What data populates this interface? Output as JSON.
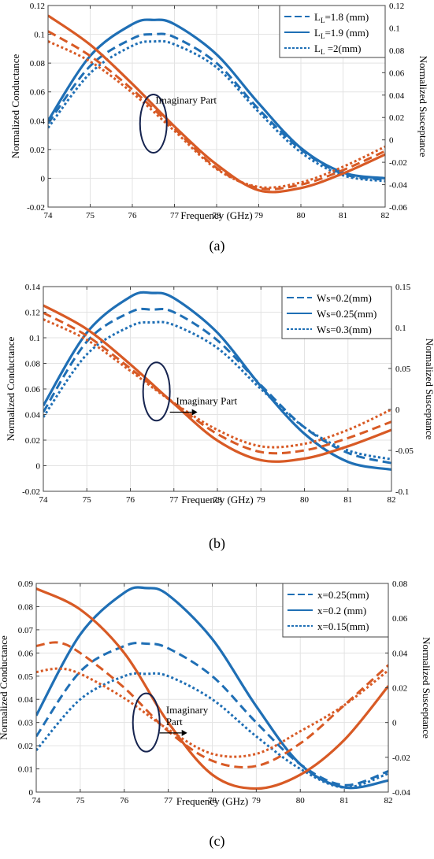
{
  "colors": {
    "blue": "#1f6fb5",
    "orange": "#d85a25",
    "ellipse": "#16244f",
    "grid": "#e3e3e3"
  },
  "chart_data": [
    {
      "type": "line",
      "caption": "(a)",
      "xlabel": "Frequency (GHz)",
      "ylabel": "Normalized Conductance",
      "y2label": "Normalized Susceptance",
      "xlim": [
        74,
        82
      ],
      "ylim": [
        -0.02,
        0.12
      ],
      "y2lim": [
        -0.06,
        0.12
      ],
      "grid": true,
      "legend_position": "top-right",
      "xticks": [
        "74",
        "75",
        "76",
        "77",
        "78",
        "79",
        "80",
        "81",
        "82"
      ],
      "yticks": [
        "-0.02",
        "0",
        "0.02",
        "0.04",
        "0.06",
        "0.08",
        "0.1",
        "0.12"
      ],
      "y2ticks": [
        "-0.06",
        "-0.04",
        "-0.02",
        "0",
        "0.02",
        "0.04",
        "0.06",
        "0.08",
        "0.1",
        "0.12"
      ],
      "legend": [
        {
          "base": "L",
          "sub": "L",
          "text": "=1.8 (mm)",
          "style": "dashed"
        },
        {
          "base": "L",
          "sub": "L",
          "text": "=1.9 (mm)",
          "style": "solid"
        },
        {
          "base": "L",
          "sub": "L",
          "text": " =2(mm)",
          "style": "dotted"
        }
      ],
      "annotation": {
        "lines": [
          "Imaginary Part"
        ],
        "x": 76.5,
        "y": 0.038,
        "text_x": 76.55,
        "text_y": 0.052,
        "arrow": false
      },
      "series": [
        {
          "part": "real",
          "style": "dashed",
          "axis": "left",
          "x": [
            74,
            75,
            76,
            76.5,
            77,
            78,
            79,
            80,
            81,
            82
          ],
          "y": [
            0.038,
            0.078,
            0.097,
            0.1,
            0.098,
            0.08,
            0.048,
            0.02,
            0.003,
            -0.001
          ]
        },
        {
          "part": "real",
          "style": "solid",
          "axis": "left",
          "x": [
            74,
            75,
            76,
            76.5,
            77,
            78,
            79,
            80,
            81,
            82
          ],
          "y": [
            0.04,
            0.085,
            0.107,
            0.11,
            0.107,
            0.086,
            0.052,
            0.021,
            0.004,
            0
          ]
        },
        {
          "part": "real",
          "style": "dotted",
          "axis": "left",
          "x": [
            74,
            75,
            76,
            76.5,
            77,
            78,
            79,
            80,
            81,
            82
          ],
          "y": [
            0.035,
            0.073,
            0.092,
            0.095,
            0.093,
            0.077,
            0.046,
            0.018,
            0.002,
            -0.002
          ]
        },
        {
          "part": "imaginary",
          "style": "dashed",
          "axis": "right",
          "x": [
            74,
            75,
            76,
            77,
            78,
            79,
            80,
            81,
            82
          ],
          "y": [
            0.097,
            0.075,
            0.045,
            0.01,
            -0.025,
            -0.043,
            -0.04,
            -0.027,
            -0.01
          ]
        },
        {
          "part": "imaginary",
          "style": "solid",
          "axis": "right",
          "x": [
            74,
            75,
            76,
            77,
            78,
            79,
            80,
            81,
            82
          ],
          "y": [
            0.111,
            0.085,
            0.05,
            0.012,
            -0.022,
            -0.045,
            -0.043,
            -0.03,
            -0.013
          ]
        },
        {
          "part": "imaginary",
          "style": "dotted",
          "axis": "right",
          "x": [
            74,
            75,
            76,
            77,
            78,
            79,
            80,
            81,
            82
          ],
          "y": [
            0.088,
            0.07,
            0.042,
            0.008,
            -0.026,
            -0.042,
            -0.038,
            -0.024,
            -0.006
          ]
        }
      ]
    },
    {
      "type": "line",
      "caption": "(b)",
      "xlabel": "Frequency (GHz)",
      "ylabel": "Normalized Conductance",
      "y2label": "Normalized Susceptance",
      "xlim": [
        74,
        82
      ],
      "ylim": [
        -0.02,
        0.14
      ],
      "y2lim": [
        -0.1,
        0.15
      ],
      "grid": true,
      "legend_position": "top-right",
      "xticks": [
        "74",
        "75",
        "76",
        "77",
        "78",
        "79",
        "80",
        "81",
        "82"
      ],
      "yticks": [
        "-0.02",
        "0",
        "0.02",
        "0.04",
        "0.06",
        "0.08",
        "0.1",
        "0.12",
        "0.14"
      ],
      "y2ticks": [
        "-0.1",
        "-0.05",
        "0",
        "0.05",
        "0.1",
        "0.15"
      ],
      "legend": [
        {
          "base": "Ws",
          "sub": "",
          "text": "=0.2(mm)",
          "style": "dashed"
        },
        {
          "base": "Ws",
          "sub": "",
          "text": "=0.25(mm)",
          "style": "solid"
        },
        {
          "base": "Ws",
          "sub": "",
          "text": "=0.3(mm)",
          "style": "dotted"
        }
      ],
      "annotation": {
        "lines": [
          "Imaginary Part"
        ],
        "x": 76.6,
        "y": 0.058,
        "text_x": 77.05,
        "text_y": 0.048,
        "arrow": true
      },
      "series": [
        {
          "part": "real",
          "style": "dashed",
          "axis": "left",
          "x": [
            74,
            75,
            76,
            76.5,
            77,
            78,
            79,
            80,
            81,
            82
          ],
          "y": [
            0.042,
            0.097,
            0.12,
            0.122,
            0.12,
            0.098,
            0.063,
            0.03,
            0.01,
            0.002
          ]
        },
        {
          "part": "real",
          "style": "solid",
          "axis": "left",
          "x": [
            74,
            75,
            76,
            76.5,
            77,
            78,
            79,
            80,
            81,
            82
          ],
          "y": [
            0.047,
            0.104,
            0.132,
            0.135,
            0.131,
            0.104,
            0.062,
            0.025,
            0.003,
            -0.003
          ]
        },
        {
          "part": "real",
          "style": "dotted",
          "axis": "left",
          "x": [
            74,
            75,
            76,
            76.5,
            77,
            78,
            79,
            80,
            81,
            82
          ],
          "y": [
            0.038,
            0.087,
            0.109,
            0.112,
            0.11,
            0.092,
            0.06,
            0.03,
            0.012,
            0.005
          ]
        },
        {
          "part": "imaginary",
          "style": "dashed",
          "axis": "right",
          "x": [
            74,
            75,
            76,
            77,
            78,
            79,
            80,
            81,
            82
          ],
          "y": [
            0.118,
            0.09,
            0.05,
            0.008,
            -0.03,
            -0.052,
            -0.05,
            -0.035,
            -0.015
          ]
        },
        {
          "part": "imaginary",
          "style": "solid",
          "axis": "right",
          "x": [
            74,
            75,
            76,
            77,
            78,
            79,
            80,
            81,
            82
          ],
          "y": [
            0.127,
            0.098,
            0.055,
            0.007,
            -0.038,
            -0.062,
            -0.06,
            -0.045,
            -0.025
          ]
        },
        {
          "part": "imaginary",
          "style": "dotted",
          "axis": "right",
          "x": [
            74,
            75,
            76,
            77,
            78,
            79,
            80,
            81,
            82
          ],
          "y": [
            0.11,
            0.085,
            0.047,
            0.008,
            -0.025,
            -0.045,
            -0.042,
            -0.025,
            0
          ]
        }
      ]
    },
    {
      "type": "line",
      "caption": "(c)",
      "xlabel": "Frequency (GHz)",
      "ylabel": "Normalized Conductance",
      "y2label": "Normalized Susceptance",
      "xlim": [
        74,
        82
      ],
      "ylim": [
        0,
        0.09
      ],
      "y2lim": [
        -0.04,
        0.08
      ],
      "grid": true,
      "legend_position": "top-right",
      "xticks": [
        "74",
        "75",
        "76",
        "77",
        "78",
        "79",
        "80",
        "81",
        "82"
      ],
      "yticks": [
        "0",
        "0.01",
        "0.02",
        "0.03",
        "0.04",
        "0.05",
        "0.06",
        "0.07",
        "0.08",
        "0.09"
      ],
      "y2ticks": [
        "-0.04",
        "-0.02",
        "0",
        "0.02",
        "0.04",
        "0.06",
        "0.08"
      ],
      "legend": [
        {
          "base": "x",
          "sub": "",
          "text": "=0.25(mm)",
          "style": "dashed"
        },
        {
          "base": "x",
          "sub": "",
          "text": "=0.2 (mm)",
          "style": "solid"
        },
        {
          "base": "x",
          "sub": "",
          "text": "=0.15(mm)",
          "style": "dotted"
        }
      ],
      "annotation": {
        "lines": [
          "Imaginary",
          "Part"
        ],
        "x": 76.5,
        "y": 0.03,
        "text_x": 76.95,
        "text_y": 0.034,
        "arrow": true
      },
      "series": [
        {
          "part": "real",
          "style": "dashed",
          "axis": "left",
          "x": [
            74,
            75,
            76,
            76.5,
            77,
            78,
            79,
            80,
            81,
            82
          ],
          "y": [
            0.024,
            0.052,
            0.063,
            0.064,
            0.062,
            0.05,
            0.03,
            0.012,
            0.003,
            0.009
          ]
        },
        {
          "part": "real",
          "style": "solid",
          "axis": "left",
          "x": [
            74,
            75,
            76,
            76.5,
            77,
            78,
            79,
            80,
            81,
            82
          ],
          "y": [
            0.033,
            0.068,
            0.086,
            0.088,
            0.085,
            0.066,
            0.037,
            0.012,
            0.002,
            0.005
          ]
        },
        {
          "part": "real",
          "style": "dotted",
          "axis": "left",
          "x": [
            74,
            75,
            76,
            76.5,
            77,
            78,
            79,
            80,
            81,
            82
          ],
          "y": [
            0.018,
            0.04,
            0.05,
            0.051,
            0.05,
            0.04,
            0.024,
            0.01,
            0.002,
            0.008
          ]
        },
        {
          "part": "imaginary",
          "style": "dashed",
          "axis": "right",
          "x": [
            74,
            74.5,
            75,
            76,
            77,
            78,
            79,
            80,
            81,
            82
          ],
          "y": [
            0.044,
            0.046,
            0.04,
            0.02,
            -0.005,
            -0.022,
            -0.025,
            -0.012,
            0.01,
            0.033
          ]
        },
        {
          "part": "imaginary",
          "style": "solid",
          "axis": "right",
          "x": [
            74,
            75,
            76,
            77,
            78,
            79,
            80,
            81,
            82
          ],
          "y": [
            0.077,
            0.065,
            0.04,
            0,
            -0.03,
            -0.038,
            -0.03,
            -0.01,
            0.021
          ]
        },
        {
          "part": "imaginary",
          "style": "dotted",
          "axis": "right",
          "x": [
            74,
            74.5,
            75,
            76,
            77,
            78,
            79,
            80,
            81,
            82
          ],
          "y": [
            0.029,
            0.031,
            0.028,
            0.014,
            -0.004,
            -0.018,
            -0.018,
            -0.005,
            0.01,
            0.03
          ]
        }
      ]
    }
  ]
}
